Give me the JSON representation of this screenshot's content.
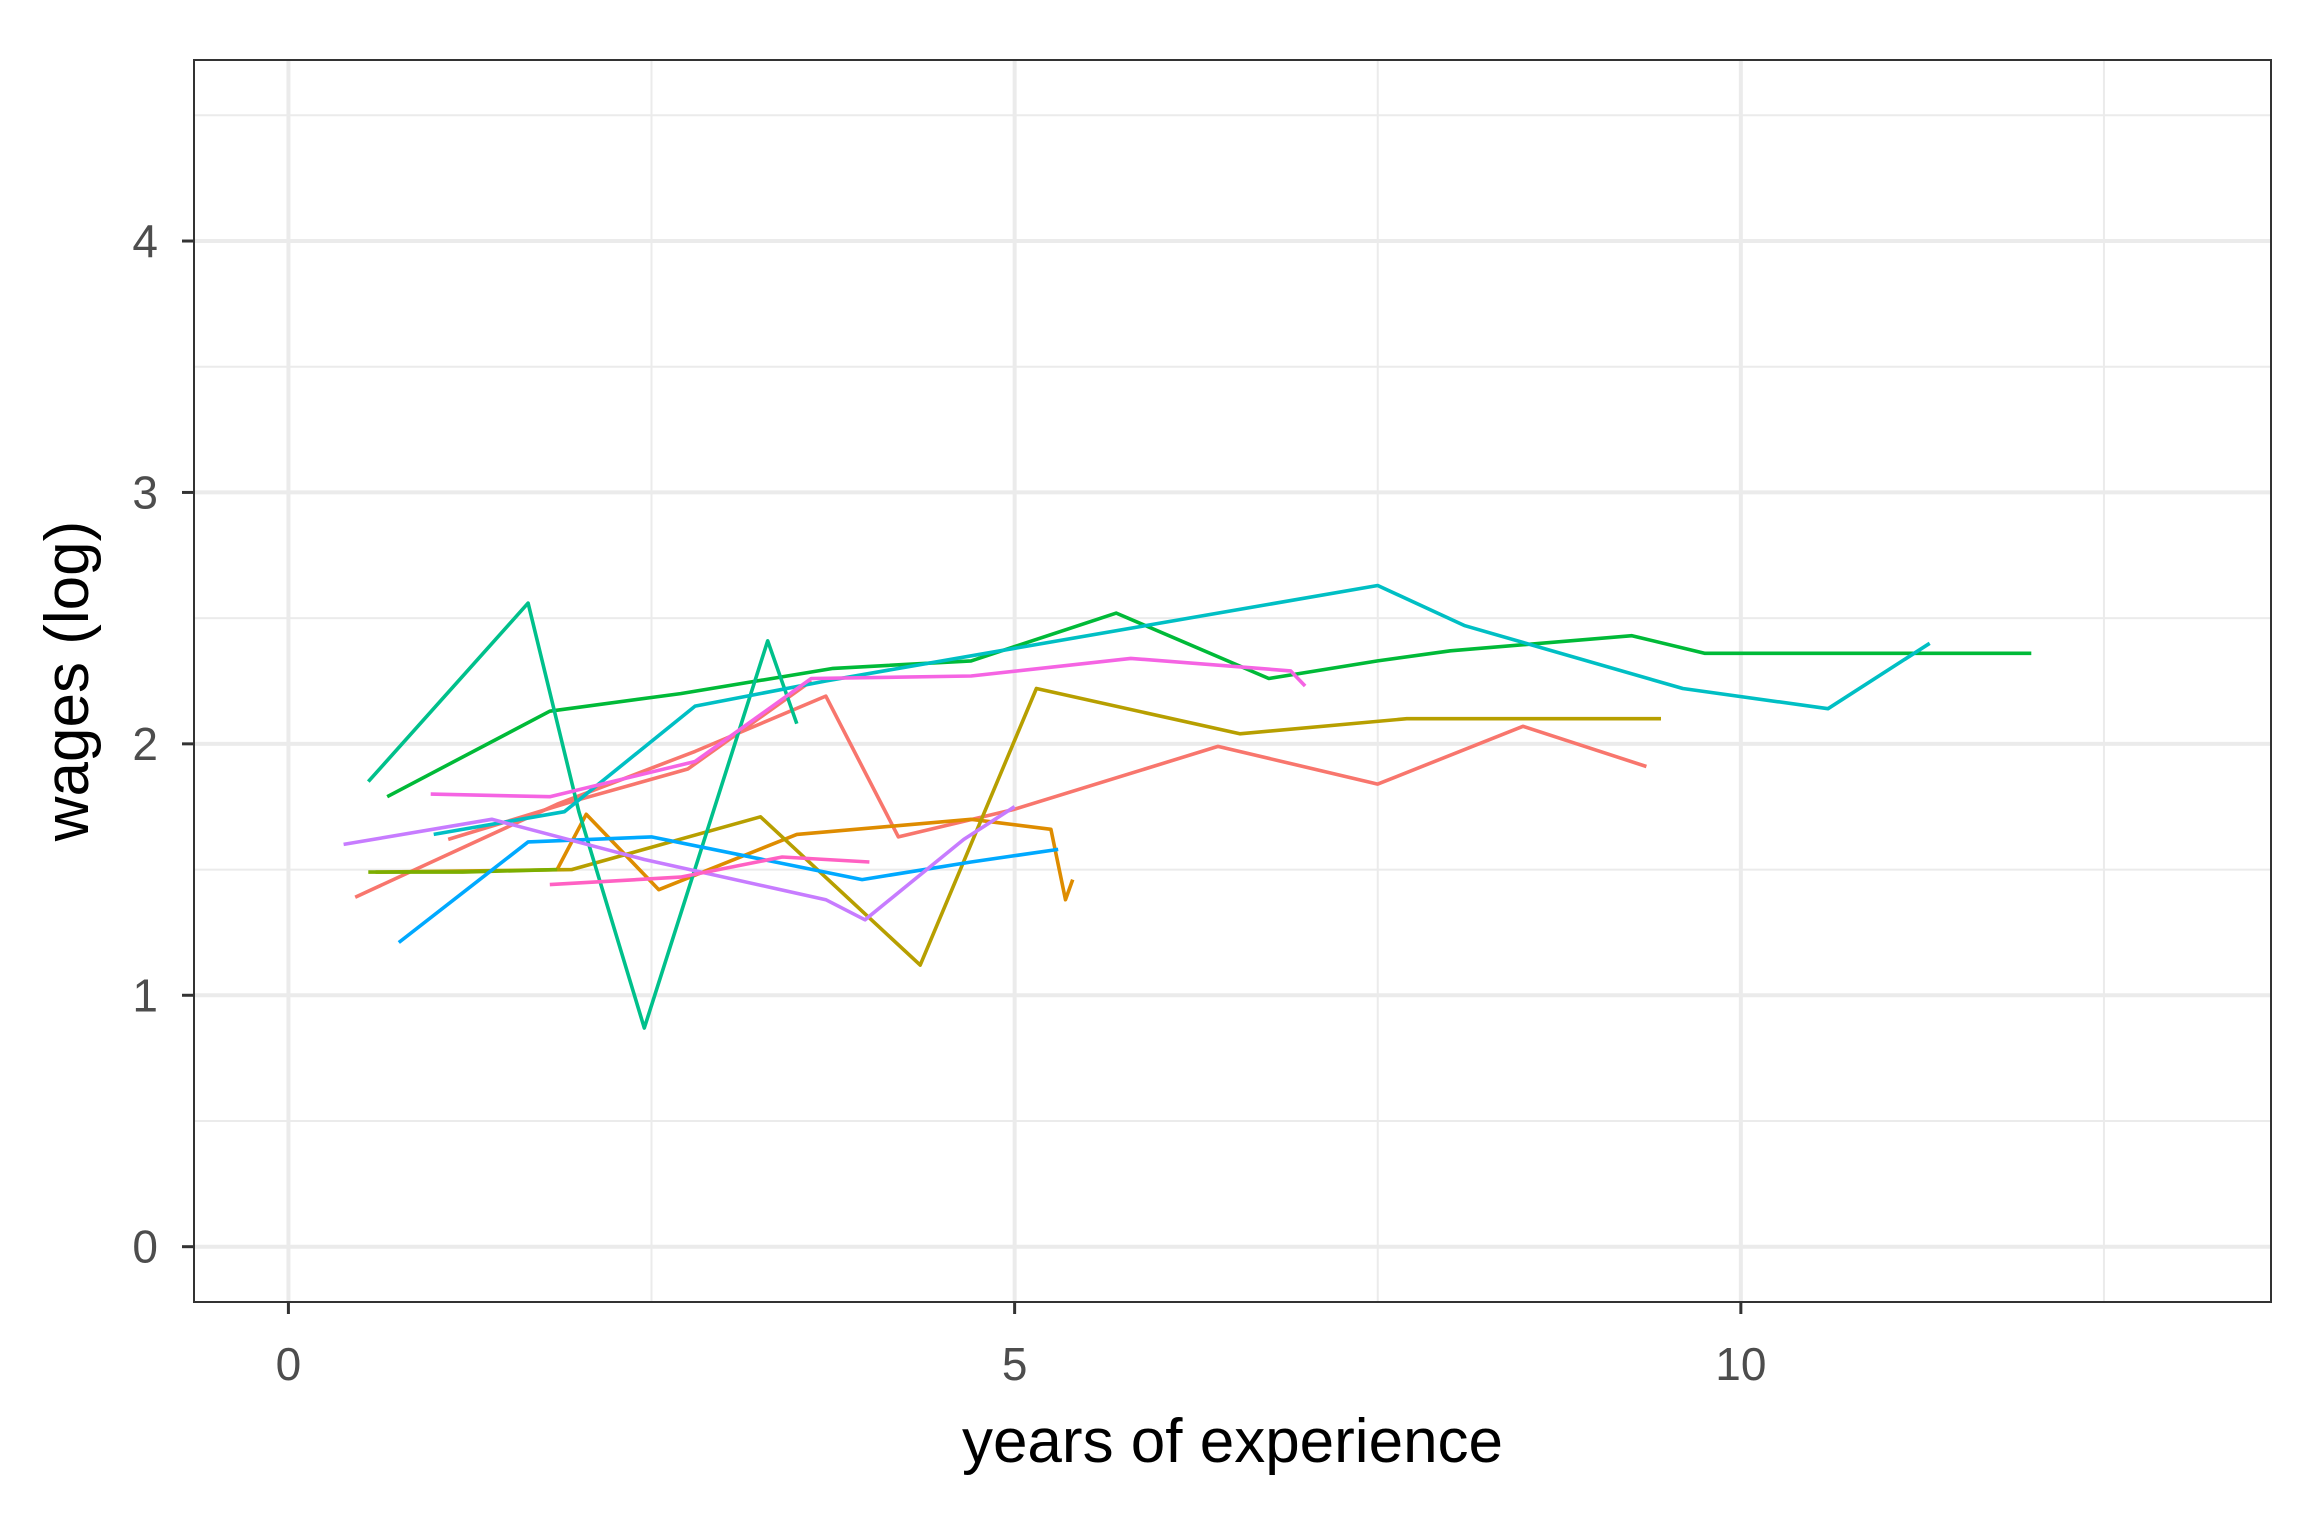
{
  "chart_data": {
    "type": "line",
    "title": "",
    "xlabel": "years of experience",
    "ylabel": "wages (log)",
    "xlim": [
      -0.65,
      13.65
    ],
    "ylim": [
      -0.22,
      4.72
    ],
    "x_ticks": [
      0,
      5,
      10
    ],
    "x_tick_labels": [
      "0",
      "5",
      "10"
    ],
    "y_ticks": [
      0,
      1,
      2,
      3,
      4
    ],
    "y_tick_labels": [
      "0",
      "1",
      "2",
      "3",
      "4"
    ],
    "grid": true,
    "legend": "none",
    "series": [
      {
        "color": "#F8766D",
        "x": [
          0.46,
          1.85,
          2.8,
          3.7,
          4.2,
          5.0,
          6.4,
          7.5,
          8.5,
          9.35
        ],
        "y": [
          1.39,
          1.76,
          1.97,
          2.19,
          1.63,
          1.74,
          1.99,
          1.84,
          2.07,
          1.91
        ]
      },
      {
        "color": "#F8766D",
        "x": [
          1.1,
          1.95,
          2.75,
          3.6
        ],
        "y": [
          1.62,
          1.77,
          1.9,
          2.25
        ]
      },
      {
        "color": "#DE8C00",
        "x": [
          1.85,
          2.05,
          2.55,
          3.5,
          4.7,
          5.25,
          5.35,
          5.4
        ],
        "y": [
          1.5,
          1.72,
          1.42,
          1.64,
          1.7,
          1.66,
          1.38,
          1.46
        ]
      },
      {
        "color": "#B79F00",
        "x": [
          0.6,
          1.95,
          3.25,
          4.35,
          5.15,
          6.55,
          7.7,
          8.7,
          9.45
        ],
        "y": [
          1.49,
          1.5,
          1.71,
          1.12,
          2.22,
          2.04,
          2.1,
          2.1,
          2.1
        ]
      },
      {
        "color": "#7CAE00",
        "x": [
          0.55,
          1.2,
          1.85
        ],
        "y": [
          1.49,
          1.49,
          1.5
        ]
      },
      {
        "color": "#00BA38",
        "x": [
          0.68,
          1.8,
          2.7,
          3.75,
          4.7,
          5.7,
          6.75,
          7.5,
          8.0,
          9.25,
          9.75,
          11.5,
          12.0
        ],
        "y": [
          1.79,
          2.13,
          2.2,
          2.3,
          2.33,
          2.52,
          2.26,
          2.33,
          2.37,
          2.43,
          2.36,
          2.36,
          2.36
        ]
      },
      {
        "color": "#00C08B",
        "x": [
          0.55,
          1.65,
          2.0,
          2.45,
          3.3,
          3.5
        ],
        "y": [
          1.85,
          2.56,
          1.73,
          0.87,
          2.41,
          2.08
        ]
      },
      {
        "color": "#00BFC4",
        "x": [
          1.0,
          1.9,
          2.8,
          3.7,
          5.0,
          7.5,
          8.1,
          9.6,
          10.6,
          11.3
        ],
        "y": [
          1.64,
          1.73,
          2.15,
          2.25,
          2.38,
          2.63,
          2.47,
          2.22,
          2.14,
          2.4
        ]
      },
      {
        "color": "#00A9FF",
        "x": [
          0.76,
          1.65,
          2.5,
          3.95,
          4.7,
          5.3
        ],
        "y": [
          1.21,
          1.61,
          1.63,
          1.46,
          1.53,
          1.58
        ]
      },
      {
        "color": "#C77CFF",
        "x": [
          0.38,
          1.4,
          2.45,
          3.7,
          3.97,
          4.65,
          5.0
        ],
        "y": [
          1.6,
          1.7,
          1.54,
          1.38,
          1.3,
          1.62,
          1.75
        ]
      },
      {
        "color": "#FF61C3",
        "x": [
          1.8,
          2.7,
          3.4,
          4.0
        ],
        "y": [
          1.44,
          1.47,
          1.55,
          1.53
        ]
      },
      {
        "color": "#F564E3",
        "x": [
          0.98,
          1.8,
          2.8,
          3.6,
          4.7,
          5.8,
          6.9,
          7.0
        ],
        "y": [
          1.8,
          1.79,
          1.93,
          2.26,
          2.27,
          2.34,
          2.29,
          2.23
        ]
      }
    ]
  }
}
